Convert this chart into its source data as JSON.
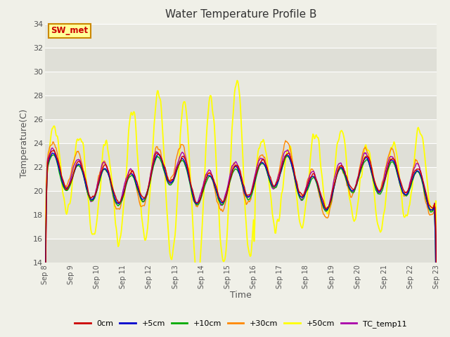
{
  "title": "Water Temperature Profile B",
  "xlabel": "Time",
  "ylabel": "Temperature(C)",
  "ylim": [
    14,
    34
  ],
  "yticks": [
    14,
    16,
    18,
    20,
    22,
    24,
    26,
    28,
    30,
    32,
    34
  ],
  "figure_bg": "#f0f0e8",
  "plot_bg": "#e8e8e0",
  "series_colors": {
    "0cm": "#cc0000",
    "+5cm": "#0000cc",
    "+10cm": "#00aa00",
    "+30cm": "#ff8800",
    "+50cm": "#ffff00",
    "TC_temp11": "#aa00aa"
  },
  "annotation_text": "SW_met",
  "annotation_color": "#cc0000",
  "annotation_bg": "#ffff99",
  "annotation_border": "#cc8800"
}
